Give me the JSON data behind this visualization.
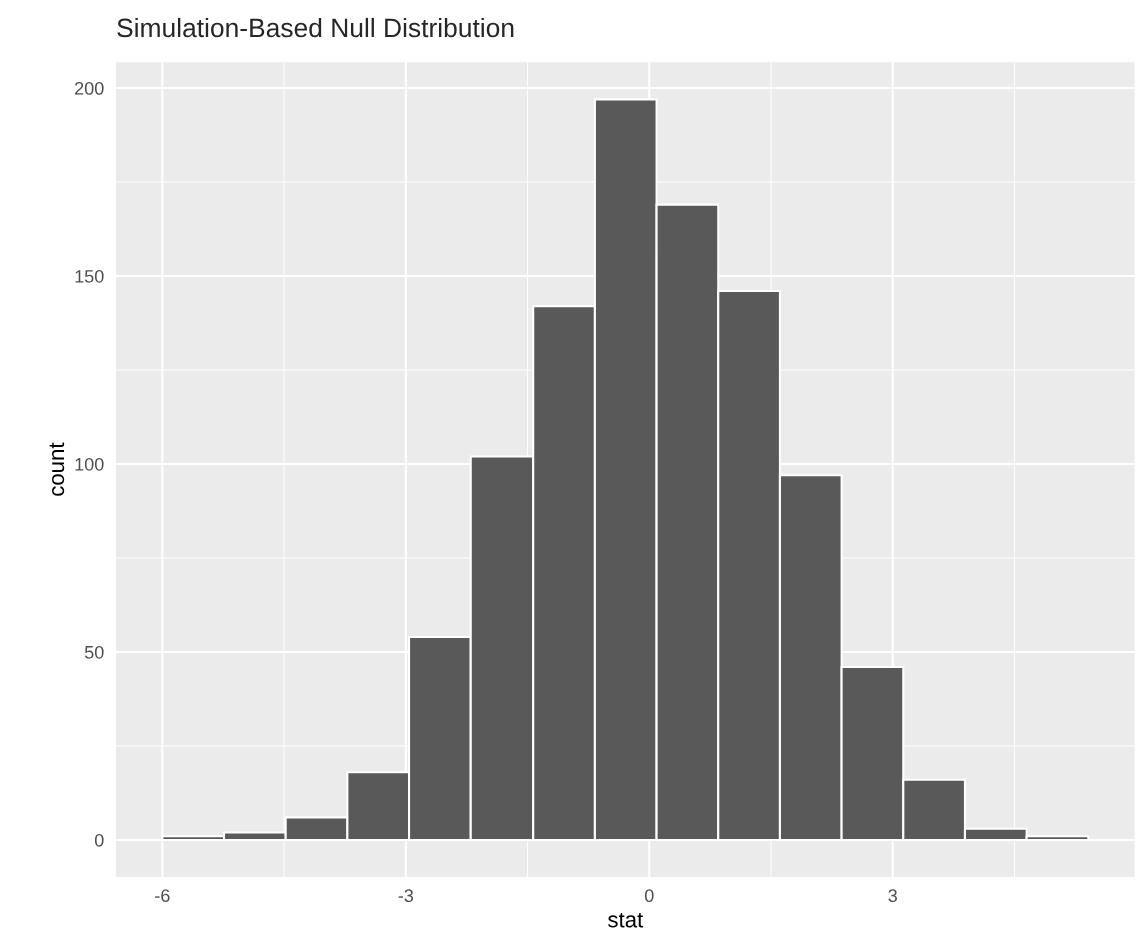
{
  "chart_data": {
    "type": "histogram",
    "title": "Simulation-Based Null Distribution",
    "xlabel": "stat",
    "ylabel": "count",
    "bins": [
      -6.0,
      -5.24,
      -4.48,
      -3.72,
      -2.96,
      -2.2,
      -1.43,
      -0.67,
      0.09,
      0.85,
      1.61,
      2.37,
      3.13,
      3.89,
      4.65,
      5.41
    ],
    "values": [
      1,
      2,
      6,
      18,
      54,
      102,
      142,
      197,
      169,
      146,
      97,
      46,
      16,
      3,
      1
    ],
    "color": "#595959",
    "xlim": [
      -6.57,
      5.98
    ],
    "ylim": [
      -9.85,
      206.85
    ],
    "xticks": [
      -6,
      -3,
      0,
      3
    ],
    "yticks": [
      0,
      50,
      100,
      150,
      200
    ],
    "grid": true
  }
}
